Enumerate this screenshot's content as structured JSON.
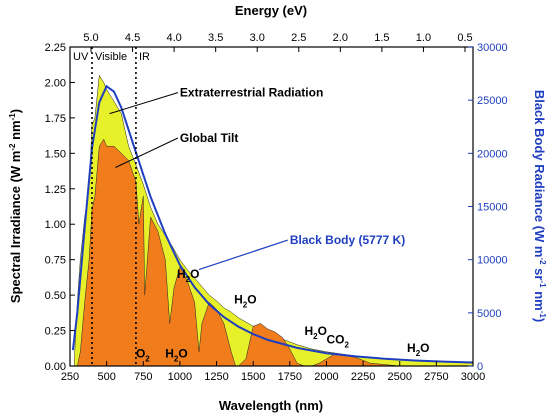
{
  "chart_data": {
    "type": "area",
    "x_axis": {
      "label": "Wavelength (nm)",
      "min": 250,
      "max": 3000,
      "ticks": [
        250,
        500,
        750,
        1000,
        1250,
        1500,
        1750,
        2000,
        2250,
        2500,
        2750,
        3000
      ]
    },
    "top_axis": {
      "label": "Energy (eV)",
      "ticks": [
        "5.0",
        "4.5",
        "4.0",
        "3.5",
        "3.0",
        "2.5",
        "2.0",
        "1.5",
        "1.0",
        "0.5"
      ]
    },
    "y_axis_left": {
      "label_main": "Spectral Irradiance (W m",
      "label_sup1": "-2",
      "label_mid": " nm",
      "label_sup2": "-1",
      "label_end": ")",
      "min": 0,
      "max": 2.25,
      "ticks": [
        "0.00",
        "0.25",
        "0.50",
        "0.75",
        "1.00",
        "1.25",
        "1.50",
        "1.75",
        "2.00",
        "2.25"
      ]
    },
    "y_axis_right": {
      "label_main": "Black Body Radiance (W m",
      "label_sup1": "-2",
      "label_mid": " sr",
      "label_sup2": "-1",
      "label_mid2": " nm",
      "label_sup3": "-1",
      "label_end": ")",
      "min": 0,
      "max": 30000,
      "ticks": [
        "0",
        "5000",
        "10000",
        "15000",
        "20000",
        "25000",
        "30000"
      ]
    },
    "regions": [
      {
        "name": "UV",
        "x_end": 400
      },
      {
        "name": "Visible",
        "x_end": 700
      },
      {
        "name": "IR"
      }
    ],
    "series": [
      {
        "name": "Extraterrestrial Radiation",
        "color": "#e8f02a",
        "x": [
          280,
          300,
          320,
          350,
          380,
          400,
          420,
          450,
          480,
          500,
          530,
          560,
          600,
          650,
          700,
          750,
          800,
          850,
          900,
          950,
          1000,
          1050,
          1100,
          1150,
          1200,
          1250,
          1300,
          1350,
          1400,
          1450,
          1500,
          1550,
          1600,
          1650,
          1700,
          1750,
          1800,
          1900,
          2000,
          2100,
          2200,
          2300,
          2400,
          2500,
          2600,
          2700,
          2800,
          2900,
          3000
        ],
        "y": [
          0.05,
          0.45,
          0.75,
          1.05,
          1.25,
          1.7,
          1.75,
          2.05,
          2.0,
          1.95,
          1.9,
          1.85,
          1.78,
          1.55,
          1.42,
          1.28,
          1.12,
          1.0,
          0.92,
          0.84,
          0.75,
          0.68,
          0.62,
          0.56,
          0.5,
          0.46,
          0.41,
          0.38,
          0.34,
          0.31,
          0.28,
          0.25,
          0.23,
          0.21,
          0.19,
          0.17,
          0.15,
          0.12,
          0.1,
          0.085,
          0.07,
          0.06,
          0.05,
          0.045,
          0.04,
          0.035,
          0.03,
          0.025,
          0.02
        ]
      },
      {
        "name": "Global Tilt",
        "color": "#f07c1c",
        "x": [
          280,
          300,
          320,
          350,
          380,
          400,
          420,
          450,
          480,
          500,
          550,
          600,
          650,
          700,
          720,
          750,
          760,
          800,
          850,
          900,
          930,
          960,
          1000,
          1050,
          1100,
          1130,
          1150,
          1200,
          1250,
          1300,
          1350,
          1380,
          1400,
          1450,
          1500,
          1550,
          1600,
          1650,
          1700,
          1750,
          1800,
          1850,
          1900,
          1950,
          2000,
          2050,
          2100,
          2150,
          2200,
          2300,
          2400,
          2500,
          2600,
          2700,
          2800,
          2900,
          3000
        ],
        "y": [
          0,
          0.0,
          0.1,
          0.45,
          0.75,
          1.1,
          1.2,
          1.55,
          1.6,
          1.55,
          1.55,
          1.5,
          1.45,
          1.3,
          1.0,
          1.2,
          0.5,
          1.05,
          0.95,
          0.75,
          0.3,
          0.55,
          0.7,
          0.6,
          0.45,
          0.1,
          0.3,
          0.45,
          0.4,
          0.3,
          0.1,
          0.0,
          0.0,
          0.05,
          0.28,
          0.3,
          0.26,
          0.24,
          0.2,
          0.12,
          0.02,
          0.0,
          0.0,
          0.02,
          0.05,
          0.08,
          0.08,
          0.07,
          0.06,
          0.02,
          0.01,
          0.0,
          0.0,
          0.0,
          0.0,
          0.0,
          0.0
        ]
      },
      {
        "name": "Black Body (5777 K)",
        "color": "#1f3fc0",
        "axis": "right",
        "x": [
          270,
          300,
          350,
          400,
          450,
          500,
          550,
          600,
          650,
          700,
          800,
          900,
          1000,
          1100,
          1200,
          1300,
          1400,
          1500,
          1600,
          1800,
          2000,
          2200,
          2400,
          2600,
          2800,
          3000
        ],
        "y": [
          1500,
          5000,
          13000,
          20500,
          24800,
          26300,
          25800,
          24300,
          22200,
          20100,
          15900,
          12400,
          9500,
          7400,
          5800,
          4600,
          3700,
          3000,
          2450,
          1700,
          1200,
          900,
          680,
          520,
          410,
          330
        ]
      }
    ],
    "annotations": [
      {
        "text": "Extraterrestrial Radiation",
        "x": 1000,
        "y": 1.9
      },
      {
        "text": "Global Tilt",
        "x": 1000,
        "y": 1.58
      },
      {
        "text": "Black Body (5777 K)",
        "x": 1750,
        "y": 0.86
      },
      {
        "text": "H",
        "sub": "2",
        "tail": "O",
        "x": 980,
        "y": 0.62
      },
      {
        "text": "H",
        "sub": "2",
        "tail": "O",
        "x": 1370,
        "y": 0.44
      },
      {
        "text": "H",
        "sub": "2",
        "tail": "O",
        "x": 1850,
        "y": 0.22
      },
      {
        "text": "CO",
        "sub": "2",
        "tail": "",
        "x": 2000,
        "y": 0.16
      },
      {
        "text": "H",
        "sub": "2",
        "tail": "O",
        "x": 2550,
        "y": 0.1
      },
      {
        "text": "O",
        "sub": "2",
        "tail": "",
        "x": 700,
        "y": 0.06
      },
      {
        "text": "H",
        "sub": "2",
        "tail": "O",
        "x": 900,
        "y": 0.06
      }
    ]
  }
}
